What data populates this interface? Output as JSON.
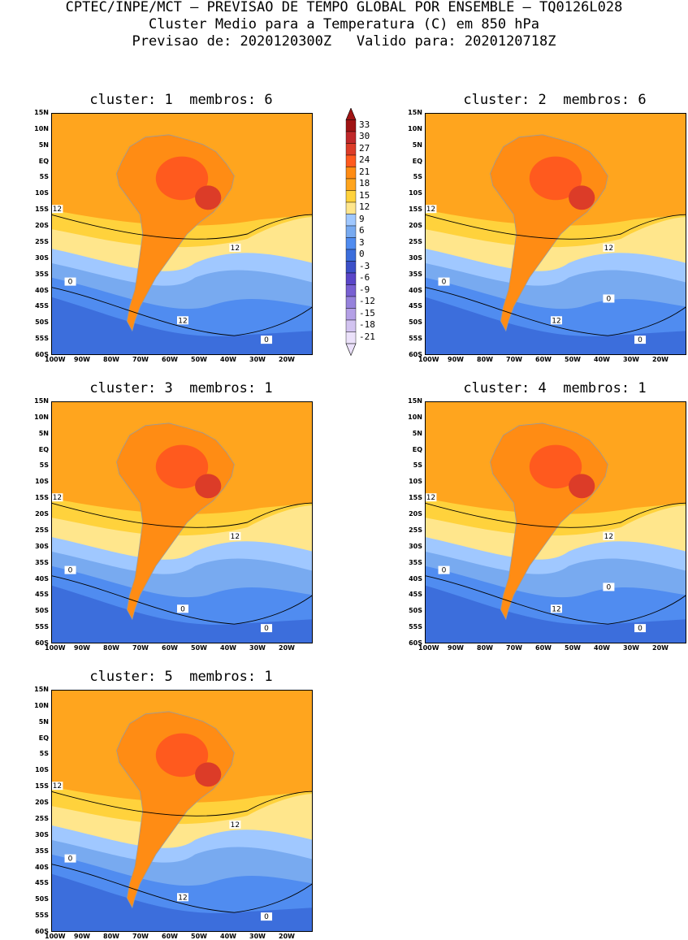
{
  "header": {
    "line1": "CPTEC/INPE/MCT – PREVISAO DE TEMPO GLOBAL POR ENSEMBLE – TQ0126L028",
    "line2": "Cluster Medio para a Temperatura (C) em 850 hPa",
    "line3": "Previsao de: 2020120300Z   Valido para: 2020120718Z"
  },
  "panels": [
    {
      "title": "cluster: 1  membros: 6",
      "contours": [
        "12",
        "12",
        "12",
        "0",
        "0"
      ]
    },
    {
      "title": "cluster: 2  membros: 6",
      "contours": [
        "12",
        "12",
        "12",
        "0",
        "0",
        "0"
      ]
    },
    {
      "title": "cluster: 3  membros: 1",
      "contours": [
        "12",
        "12",
        "0",
        "0",
        "0"
      ]
    },
    {
      "title": "cluster: 4  membros: 1",
      "contours": [
        "12",
        "12",
        "12",
        "0",
        "0",
        "0"
      ]
    },
    {
      "title": "cluster: 5  membros: 1",
      "contours": [
        "12",
        "12",
        "12",
        "0",
        "0"
      ]
    }
  ],
  "lat_labels": [
    "15N",
    "10N",
    "5N",
    "EQ",
    "5S",
    "10S",
    "15S",
    "20S",
    "25S",
    "30S",
    "35S",
    "40S",
    "45S",
    "50S",
    "55S",
    "60S"
  ],
  "lon_labels": [
    "100W",
    "90W",
    "80W",
    "70W",
    "60W",
    "50W",
    "40W",
    "30W",
    "20W"
  ],
  "colorbar": {
    "labels": [
      "33",
      "30",
      "27",
      "24",
      "21",
      "18",
      "15",
      "12",
      "9",
      "6",
      "3",
      "0",
      "-3",
      "-6",
      "-9",
      "-12",
      "-15",
      "-18",
      "-21"
    ],
    "colors": [
      "#a01414",
      "#c0282a",
      "#dc3c28",
      "#ff5a1e",
      "#ff8c14",
      "#ffa51e",
      "#ffd23c",
      "#ffe68c",
      "#a0c8ff",
      "#78aaf0",
      "#508cf0",
      "#3c6edc",
      "#3c50c8",
      "#5a46c8",
      "#7860d2",
      "#9682dc",
      "#b4a0e6",
      "#d2c3f0",
      "#ebe1fa"
    ]
  }
}
